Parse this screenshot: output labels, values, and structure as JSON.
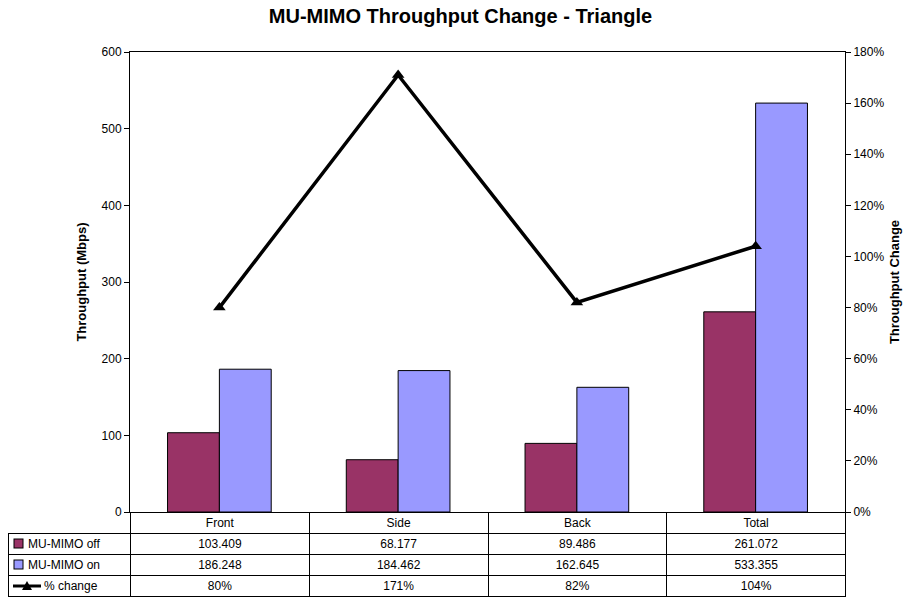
{
  "chart_data": {
    "type": "bar",
    "title": "MU-MIMO Throughput Change - Triangle",
    "y_label": "Throughput (Mbps)",
    "y2_label": "Throughput Change",
    "categories": [
      "Front",
      "Side",
      "Back",
      "Total"
    ],
    "ylim": [
      0,
      600
    ],
    "yticks": [
      0,
      100,
      200,
      300,
      400,
      500,
      600
    ],
    "y2lim": [
      0,
      180
    ],
    "y2ticks": [
      {
        "value": 0,
        "label": "0%"
      },
      {
        "value": 20,
        "label": "20%"
      },
      {
        "value": 40,
        "label": "40%"
      },
      {
        "value": 60,
        "label": "60%"
      },
      {
        "value": 80,
        "label": "80%"
      },
      {
        "value": 100,
        "label": "100%"
      },
      {
        "value": 120,
        "label": "120%"
      },
      {
        "value": 140,
        "label": "140%"
      },
      {
        "value": 160,
        "label": "160%"
      },
      {
        "value": 180,
        "label": "180%"
      }
    ],
    "grid": false,
    "series": [
      {
        "name": "MU-MIMO off",
        "type": "bar",
        "color": "#993366",
        "values": [
          103.409,
          68.177,
          89.486,
          261.072
        ]
      },
      {
        "name": "MU-MIMO on",
        "type": "bar",
        "color": "#9999ff",
        "values": [
          186.248,
          184.462,
          162.645,
          533.355
        ]
      },
      {
        "name": "% change",
        "type": "line",
        "axis": "y2",
        "color": "#000000",
        "marker": "triangle",
        "line_style": "solid",
        "values": [
          80,
          171,
          82,
          104
        ],
        "value_labels": [
          "80%",
          "171%",
          "82%",
          "104%"
        ]
      }
    ]
  }
}
